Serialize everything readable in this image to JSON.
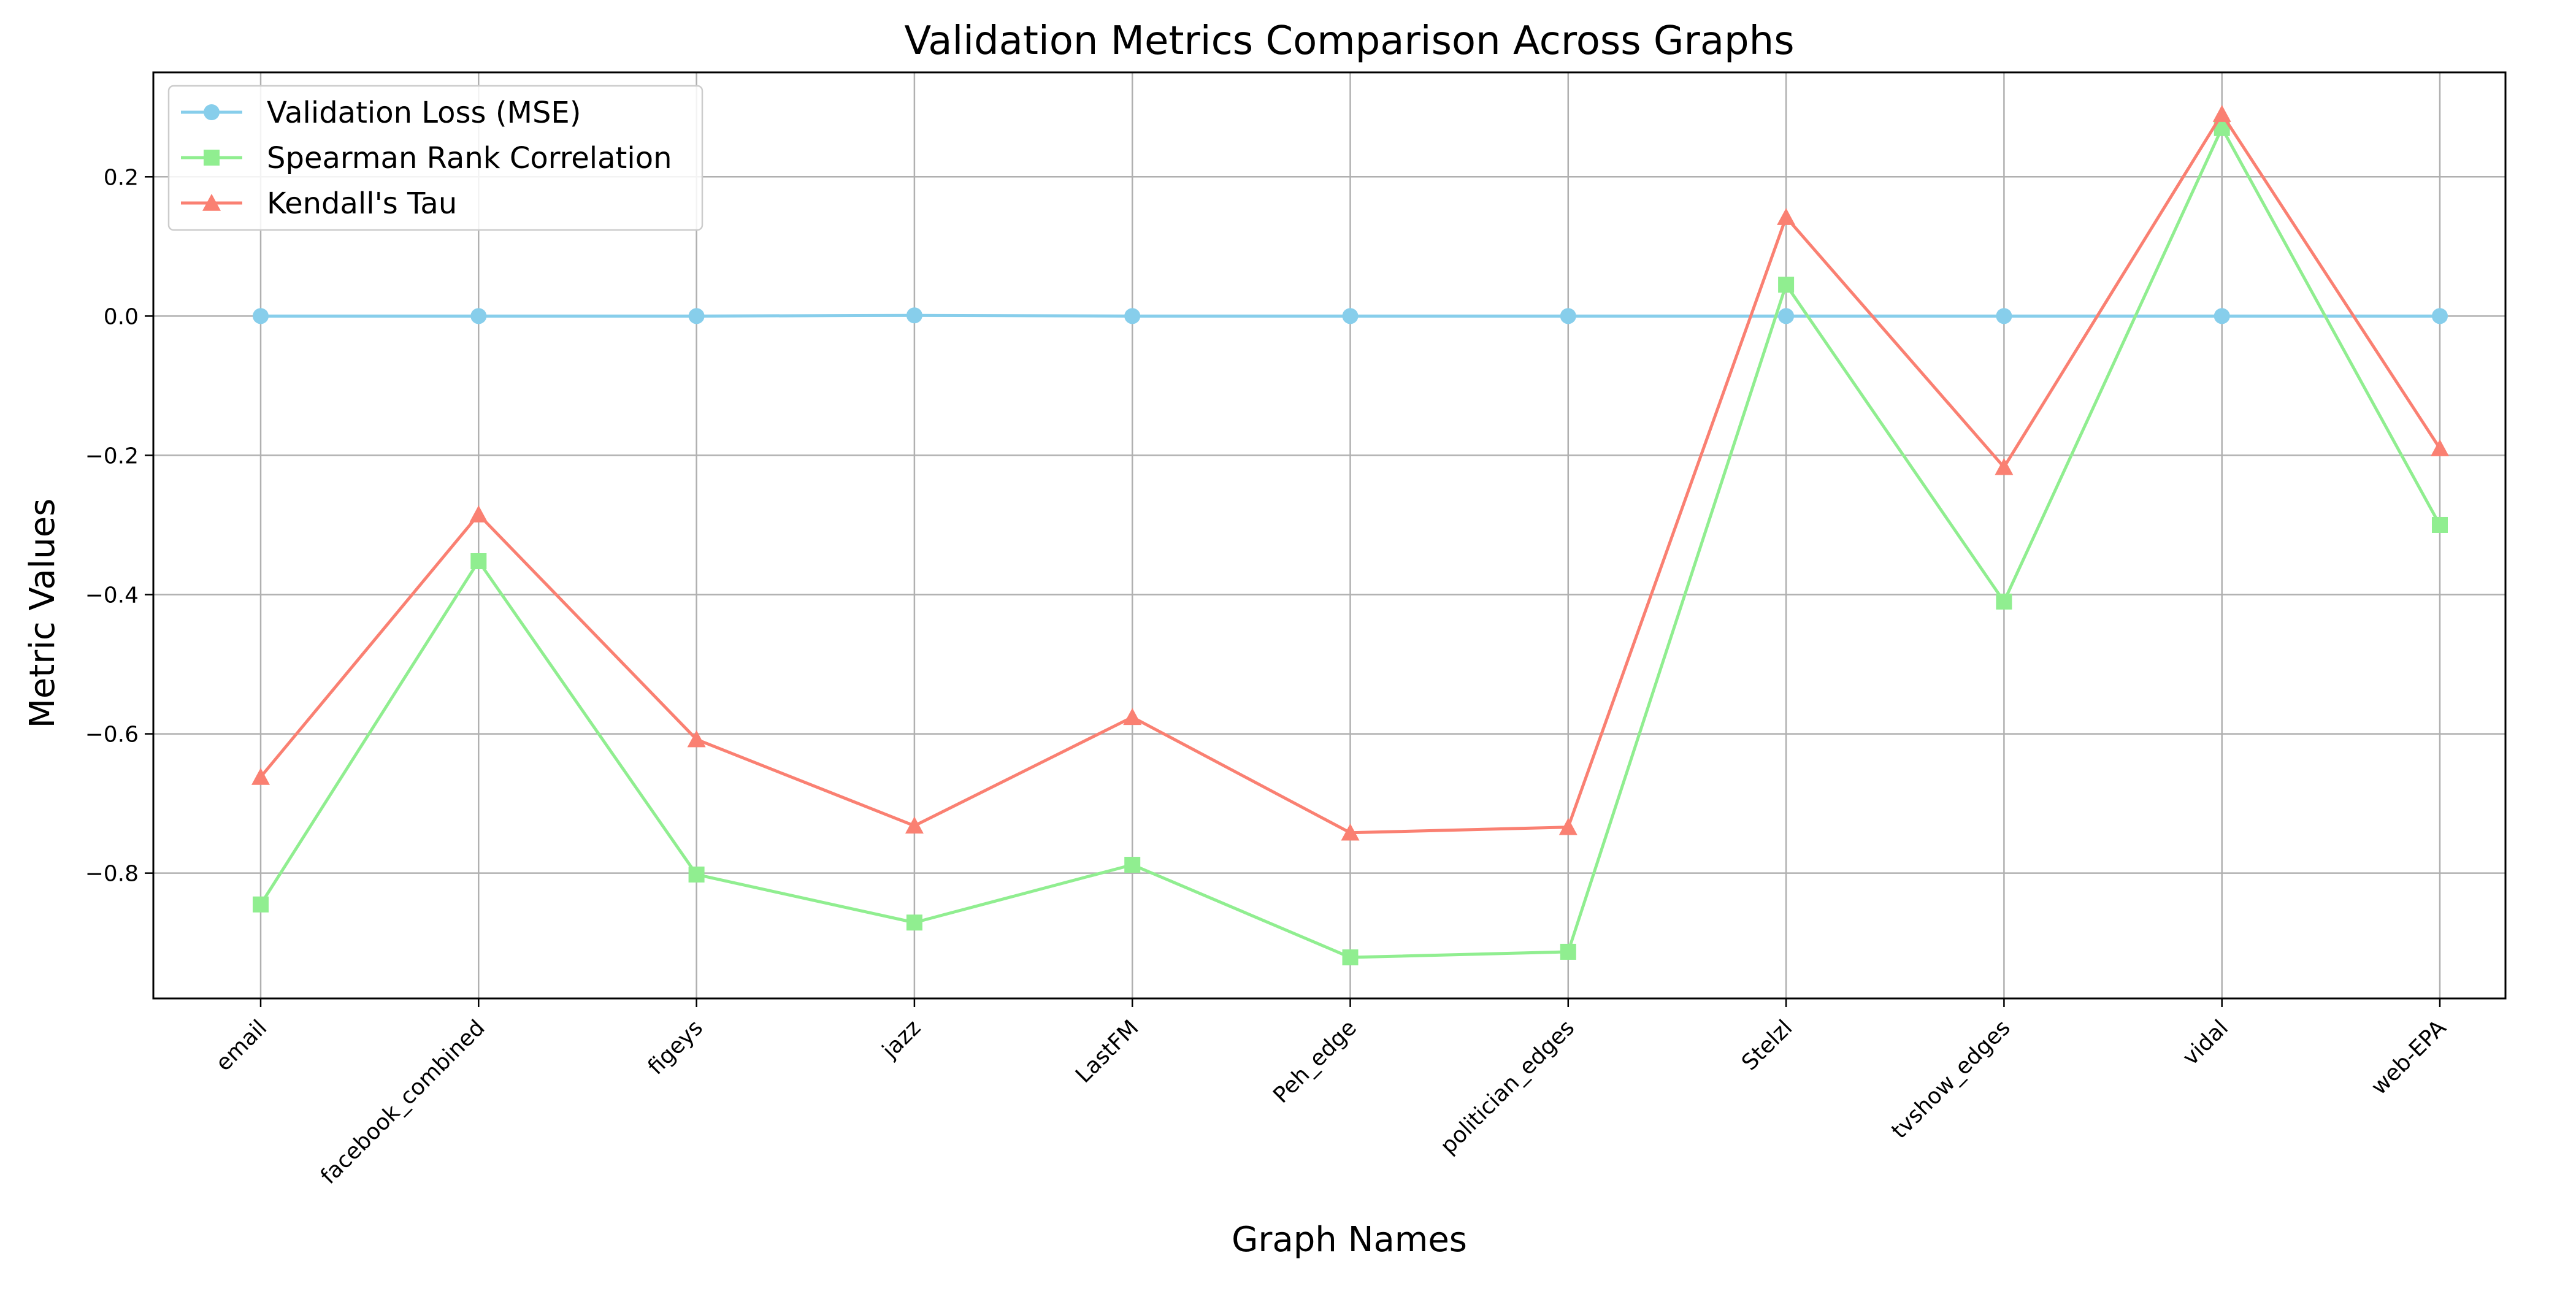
{
  "chart_data": {
    "type": "line",
    "title": "Validation Metrics Comparison Across Graphs",
    "xlabel": "Graph Names",
    "ylabel": "Metric Values",
    "categories": [
      "email",
      "facebook_combined",
      "figeys",
      "jazz",
      "LastFM",
      "Peh_edge",
      "politician_edges",
      "Stelzl",
      "tvshow_edges",
      "vidal",
      "web-EPA"
    ],
    "ylim": [
      -0.98,
      0.35
    ],
    "yticks": [
      0.2,
      0.0,
      -0.2,
      -0.4,
      -0.6,
      -0.8
    ],
    "ytick_labels": [
      "0.2",
      "0.0",
      "−0.2",
      "−0.4",
      "−0.6",
      "−0.8"
    ],
    "grid": true,
    "legend_position": "top-left",
    "series": [
      {
        "name": "Validation Loss (MSE)",
        "color": "#87ceeb",
        "marker": "circle",
        "values": [
          0.0,
          0.0,
          0.0,
          0.001,
          0.0,
          0.0,
          0.0,
          0.0,
          0.0,
          0.0,
          0.0
        ]
      },
      {
        "name": "Spearman Rank Correlation",
        "color": "#90ee90",
        "marker": "square",
        "values": [
          -0.845,
          -0.352,
          -0.802,
          -0.871,
          -0.788,
          -0.921,
          -0.913,
          0.045,
          -0.41,
          0.27,
          -0.3
        ]
      },
      {
        "name": "Kendall's Tau",
        "color": "#fa8072",
        "marker": "triangle",
        "values": [
          -0.662,
          -0.285,
          -0.608,
          -0.732,
          -0.576,
          -0.742,
          -0.734,
          0.142,
          -0.217,
          0.29,
          -0.19
        ]
      }
    ]
  }
}
